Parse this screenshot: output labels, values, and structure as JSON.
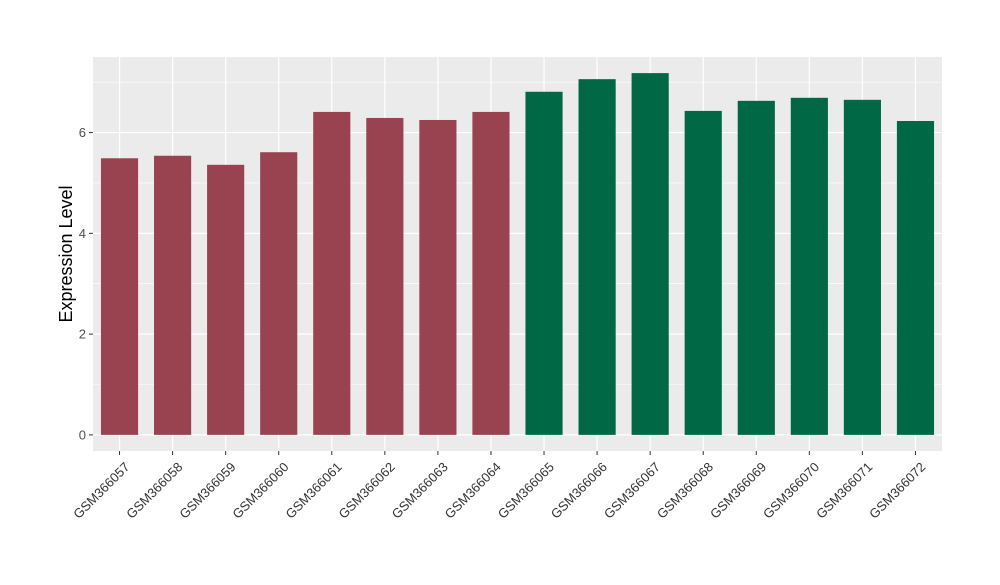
{
  "chart_data": {
    "type": "bar",
    "title": "",
    "xlabel": "",
    "ylabel": "Expression Level",
    "ylim": [
      -0.32,
      7.5
    ],
    "yticks": [
      0,
      2,
      4,
      6
    ],
    "grid": true,
    "legend": "none",
    "categories": [
      "GSM366057",
      "GSM366058",
      "GSM366059",
      "GSM366060",
      "GSM366061",
      "GSM366062",
      "GSM366063",
      "GSM366064",
      "GSM366065",
      "GSM366066",
      "GSM366067",
      "GSM366068",
      "GSM366069",
      "GSM366070",
      "GSM366071",
      "GSM366072"
    ],
    "values": [
      5.49,
      5.54,
      5.36,
      5.61,
      6.41,
      6.29,
      6.25,
      6.41,
      6.81,
      7.06,
      7.18,
      6.43,
      6.63,
      6.69,
      6.65,
      6.23
    ],
    "groups": [
      "g1",
      "g1",
      "g1",
      "g1",
      "g1",
      "g1",
      "g1",
      "g1",
      "g2",
      "g2",
      "g2",
      "g2",
      "g2",
      "g2",
      "g2",
      "g2"
    ],
    "colors": {
      "g1": "#9a4350",
      "g2": "#006845"
    },
    "panel_bg": "#ebebeb",
    "gridline_color": "#ffffff"
  }
}
